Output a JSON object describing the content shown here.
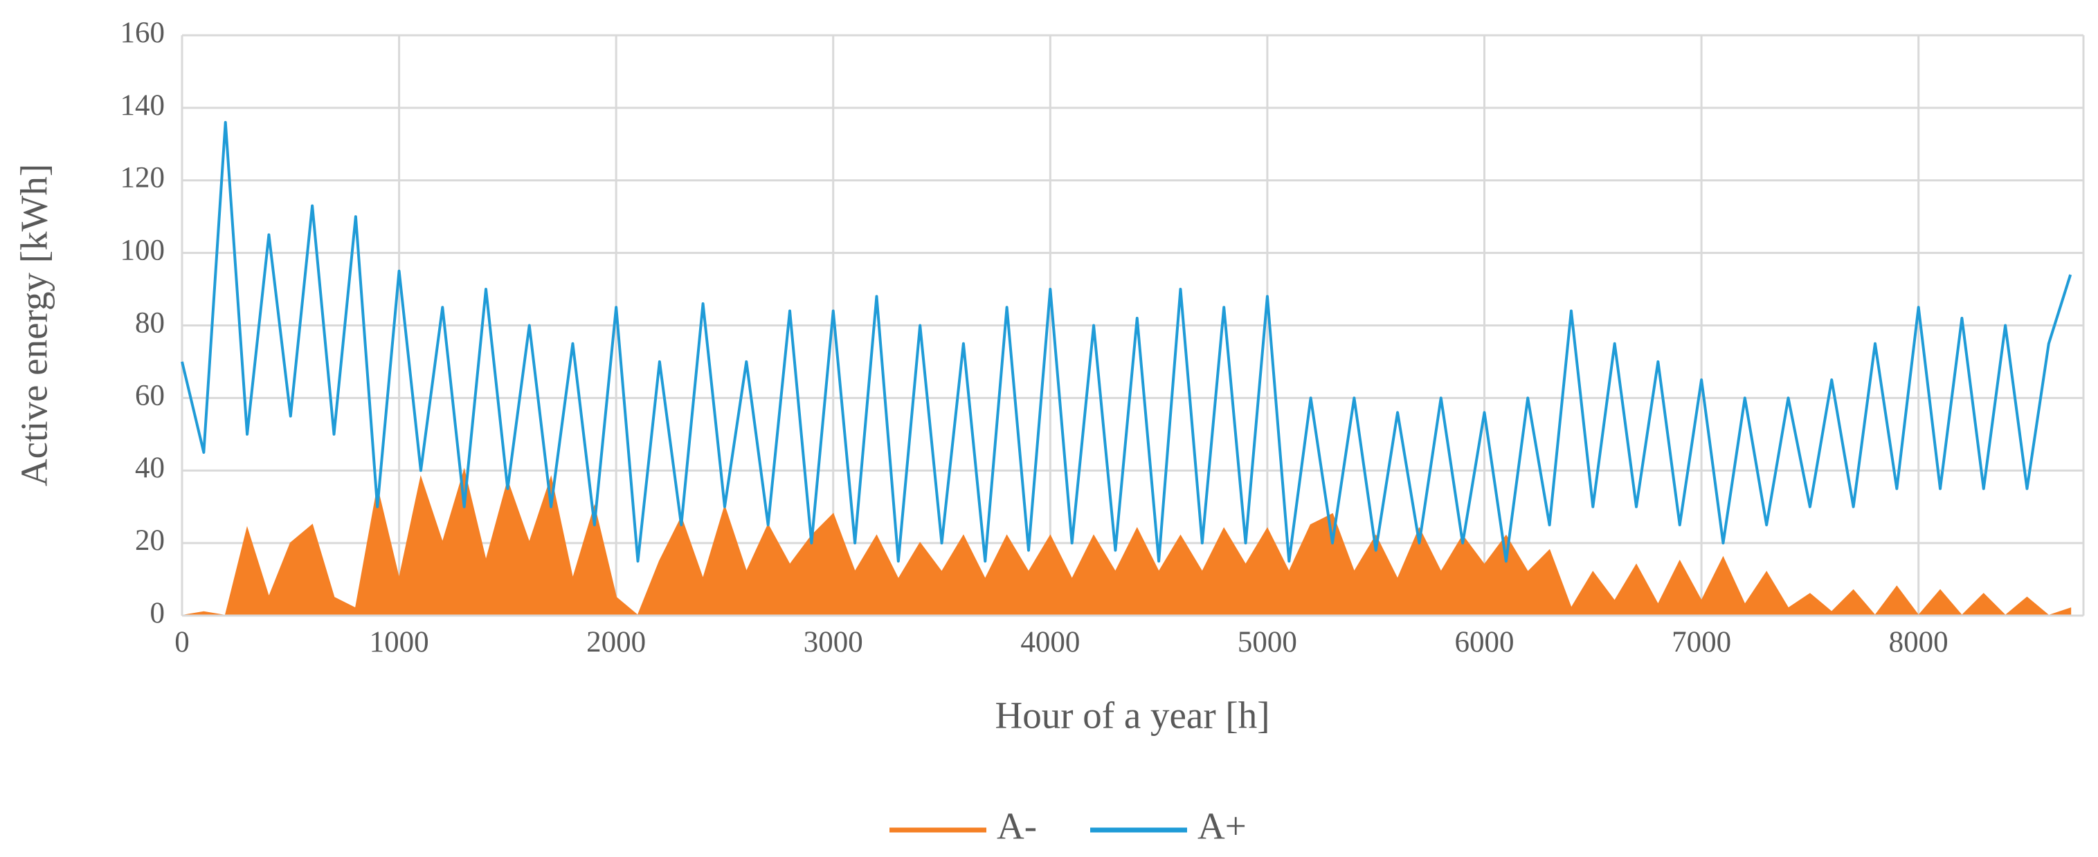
{
  "chart_data": {
    "type": "line",
    "xlabel": "Hour of a year [h]",
    "ylabel": "Active energy [kWh]",
    "x": [
      0,
      100,
      200,
      300,
      400,
      500,
      600,
      700,
      800,
      900,
      1000,
      1100,
      1200,
      1300,
      1400,
      1500,
      1600,
      1700,
      1800,
      1900,
      2000,
      2100,
      2200,
      2300,
      2400,
      2500,
      2600,
      2700,
      2800,
      2900,
      3000,
      3100,
      3200,
      3300,
      3400,
      3500,
      3600,
      3700,
      3800,
      3900,
      4000,
      4100,
      4200,
      4300,
      4400,
      4500,
      4600,
      4700,
      4800,
      4900,
      5000,
      5100,
      5200,
      5300,
      5400,
      5500,
      5600,
      5700,
      5800,
      5900,
      6000,
      6100,
      6200,
      6300,
      6400,
      6500,
      6600,
      6700,
      6800,
      6900,
      7000,
      7100,
      7200,
      7300,
      7400,
      7500,
      7600,
      7700,
      7800,
      7900,
      8000,
      8100,
      8200,
      8300,
      8400,
      8500,
      8600,
      8700
    ],
    "series": [
      {
        "name": "A-",
        "type": "area",
        "color": "#f58025",
        "values": [
          0,
          1,
          0,
          24,
          5,
          20,
          25,
          5,
          2,
          35,
          10,
          38,
          20,
          40,
          15,
          37,
          20,
          38,
          10,
          30,
          5,
          0,
          15,
          27,
          10,
          30,
          12,
          25,
          14,
          22,
          28,
          12,
          22,
          10,
          20,
          12,
          22,
          10,
          22,
          12,
          22,
          10,
          22,
          12,
          24,
          12,
          22,
          12,
          24,
          14,
          24,
          12,
          25,
          28,
          12,
          22,
          10,
          24,
          12,
          22,
          14,
          22,
          12,
          18,
          2,
          12,
          4,
          14,
          3,
          15,
          4,
          16,
          3,
          12,
          2,
          6,
          1,
          7,
          0,
          8,
          0,
          7,
          0,
          6,
          0,
          5,
          0,
          2
        ]
      },
      {
        "name": "A+",
        "type": "line",
        "color": "#1f9bd7",
        "values": [
          70,
          45,
          136,
          50,
          105,
          55,
          113,
          50,
          110,
          30,
          95,
          40,
          85,
          30,
          90,
          35,
          80,
          30,
          75,
          25,
          85,
          15,
          70,
          25,
          86,
          30,
          70,
          25,
          84,
          20,
          84,
          20,
          88,
          15,
          80,
          20,
          75,
          15,
          85,
          18,
          90,
          20,
          80,
          18,
          82,
          15,
          90,
          20,
          85,
          20,
          88,
          15,
          60,
          20,
          60,
          18,
          56,
          20,
          60,
          20,
          56,
          15,
          60,
          25,
          84,
          30,
          75,
          30,
          70,
          25,
          65,
          20,
          60,
          25,
          60,
          30,
          65,
          30,
          75,
          35,
          85,
          35,
          82,
          35,
          80,
          35,
          75,
          94
        ]
      }
    ],
    "xlim": [
      0,
      8760
    ],
    "xticks": [
      0,
      1000,
      2000,
      3000,
      4000,
      5000,
      6000,
      7000,
      8000
    ],
    "ylim": [
      0,
      160
    ],
    "yticks": [
      0,
      20,
      40,
      60,
      80,
      100,
      120,
      140,
      160
    ],
    "grid": true,
    "legend": "bottom"
  }
}
